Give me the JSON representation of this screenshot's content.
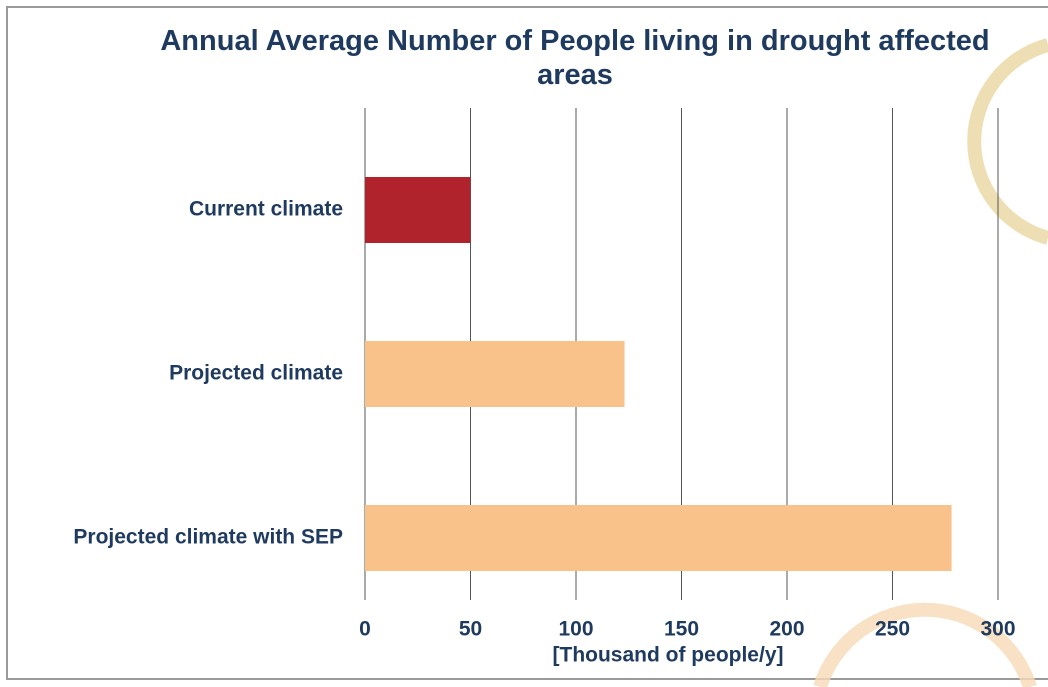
{
  "chart_data": {
    "type": "hbar",
    "title": "Annual Average Number of People living in drought affected areas",
    "categories": [
      "Current climate",
      "Projected climate",
      "Projected climate with SEP"
    ],
    "values": [
      50,
      123,
      278
    ],
    "colors": [
      "#b0232c",
      "#f8c28a",
      "#f8c28a"
    ],
    "x_label": "[Thousand of people/y]",
    "xlim": [
      0,
      300
    ],
    "xticks": [
      0,
      50,
      100,
      150,
      200,
      250,
      300
    ],
    "grid": true
  }
}
